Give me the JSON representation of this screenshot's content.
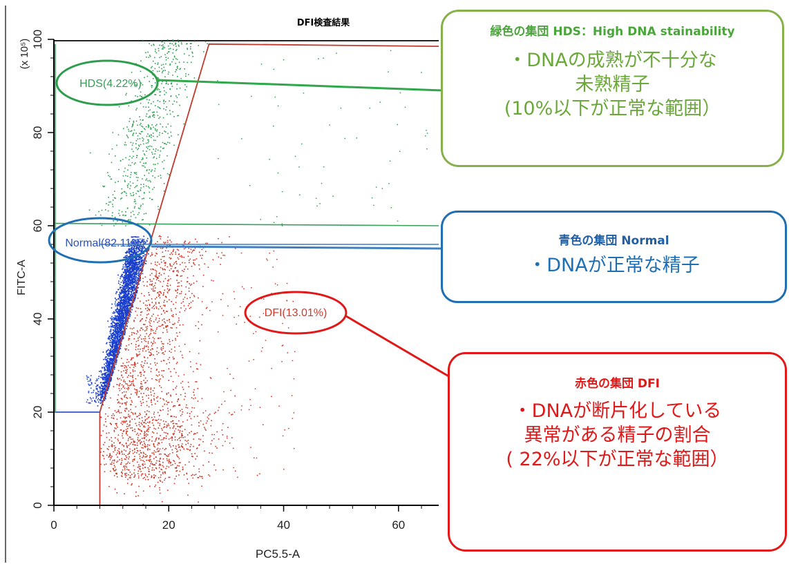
{
  "chart_data": {
    "type": "scatter",
    "title": "DFI検査結果",
    "xlabel": "PC5.5-A",
    "ylabel": "FITC-A",
    "yunit": "(x 10⁵)",
    "xlim": [
      0,
      67
    ],
    "ylim": [
      0,
      100
    ],
    "xticks": [
      0,
      20,
      40,
      60
    ],
    "yticks": [
      0,
      20,
      40,
      60,
      80,
      100
    ],
    "populations": [
      {
        "name": "HDS(4.22%)",
        "color": "#2e9e4e"
      },
      {
        "name": "Normal(82.11%)",
        "color": "#1a3fcc"
      },
      {
        "name": "DFI(13.01%)",
        "color": "#cc3322"
      }
    ],
    "gates": {
      "dfi_boundary": [
        [
          8,
          0
        ],
        [
          8,
          20
        ],
        [
          27,
          99
        ],
        [
          67,
          98.5
        ]
      ],
      "normal_lower": [
        [
          0,
          20
        ],
        [
          8,
          20
        ]
      ],
      "normal_upper": [
        [
          0,
          60.5
        ],
        [
          67,
          60
        ]
      ],
      "normal_top": [
        [
          8,
          56
        ],
        [
          67,
          56
        ]
      ]
    }
  },
  "callouts": {
    "hds": {
      "heading": "緑色の集団 HDS：High DNA stainability",
      "lines": [
        "・DNAの成熟が不十分な",
        "未熟精子",
        "(10%以下が正常な範囲）"
      ]
    },
    "normal": {
      "heading": "青色の集団 Normal",
      "lines": [
        "・DNAが正常な精子"
      ]
    },
    "dfi": {
      "heading": "赤色の集団 DFI",
      "lines": [
        "・DNAが断片化している",
        "異常がある精子の割合",
        "( 22%以下が正常な範囲）"
      ]
    }
  }
}
